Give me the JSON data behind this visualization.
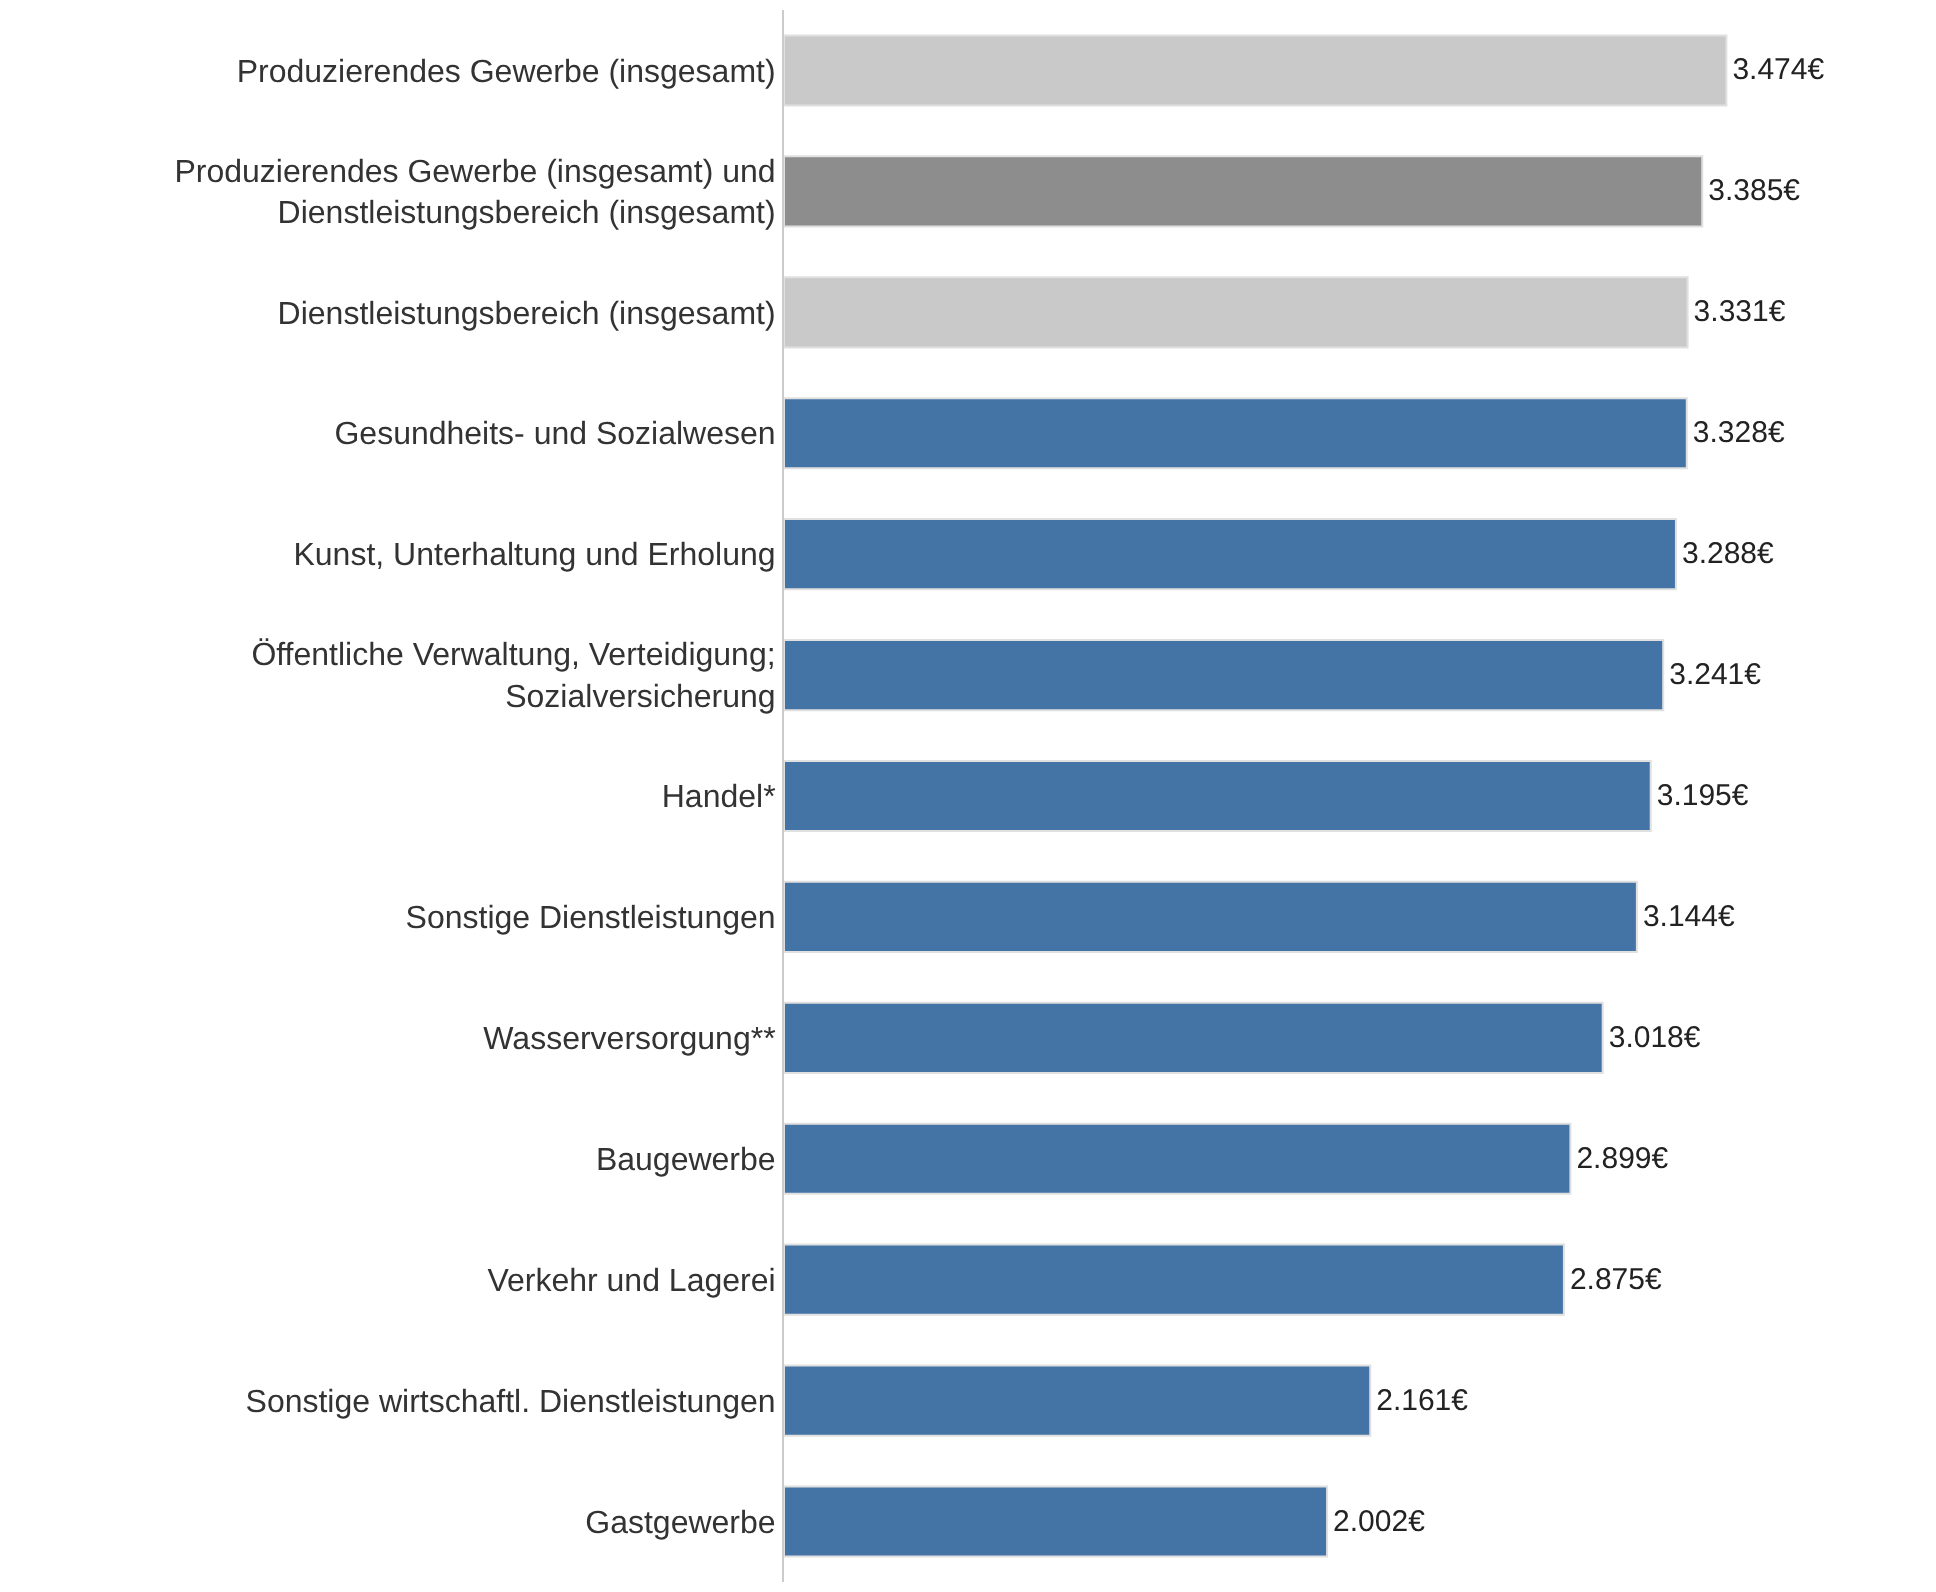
{
  "chart_data": {
    "type": "bar",
    "orientation": "horizontal",
    "categories": [
      "Produzierendes Gewerbe (insgesamt)",
      "Produzierendes Gewerbe (insgesamt) und Dienstleistungsbereich (insgesamt)",
      "Dienstleistungsbereich (insgesamt)",
      "Gesundheits- und Sozialwesen",
      "Kunst, Unterhaltung und Erholung",
      "Öffentliche Verwaltung, Verteidigung; Sozialversicherung",
      "Handel*",
      "Sonstige Dienstleistungen",
      "Wasserversorgung**",
      "Baugewerbe",
      "Verkehr und Lagerei",
      "Sonstige wirtschaftl. Dienstleistungen",
      "Gastgewerbe"
    ],
    "values": [
      3474,
      3385,
      3331,
      3328,
      3288,
      3241,
      3195,
      3144,
      3018,
      2899,
      2875,
      2161,
      2002
    ],
    "value_labels": [
      "3.474€",
      "3.385€",
      "3.331€",
      "3.328€",
      "3.288€",
      "3.241€",
      "3.195€",
      "3.144€",
      "3.018€",
      "2.899€",
      "2.875€",
      "2.161€",
      "2.002€"
    ],
    "colors": [
      "#c9c9c9",
      "#8d8d8d",
      "#c9c9c9",
      "#4474a6",
      "#4474a6",
      "#4474a6",
      "#4474a6",
      "#4474a6",
      "#4474a6",
      "#4474a6",
      "#4474a6",
      "#4474a6",
      "#4474a6"
    ],
    "tick_labels": "y"
  }
}
